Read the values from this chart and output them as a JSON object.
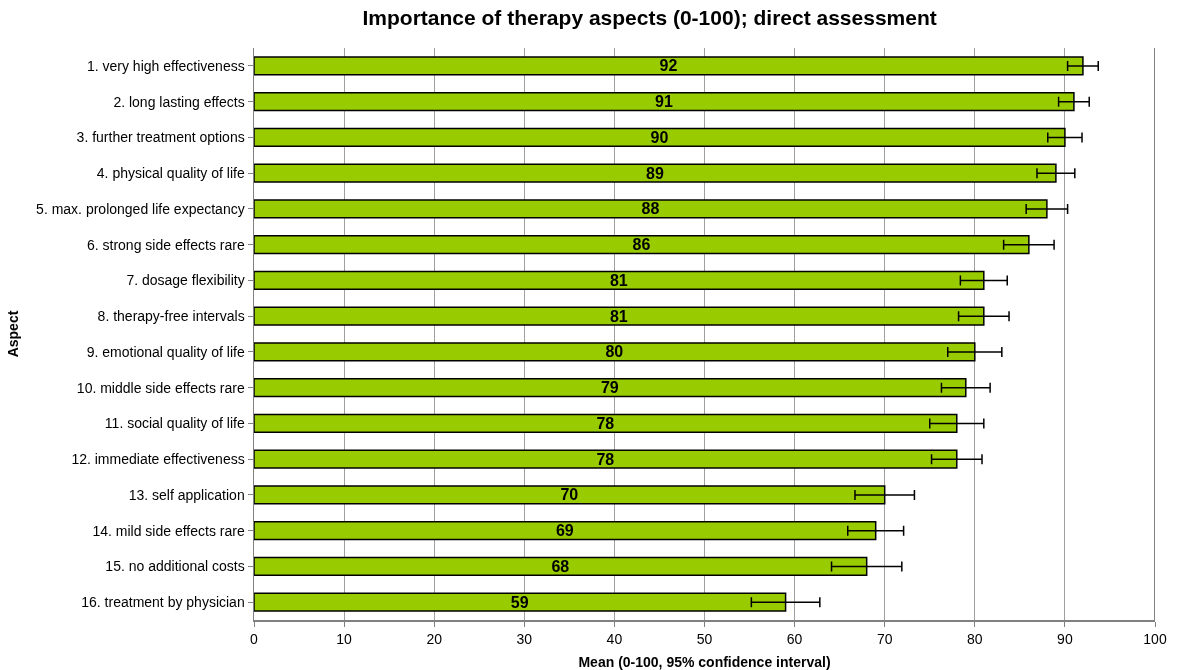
{
  "chart_data": {
    "type": "bar",
    "orientation": "horizontal",
    "title": "Importance of therapy aspects (0-100); direct assessment",
    "xlabel": "Mean (0-100, 95% confidence interval)",
    "ylabel": "Aspect",
    "categories": [
      "1. very high effectiveness",
      "2. long lasting effects",
      "3. further treatment options",
      "4. physical quality of life",
      "5. max. prolonged life expectancy",
      "6. strong side effects rare",
      "7. dosage flexibility",
      "8. therapy-free intervals",
      "9. emotional quality of life",
      "10. middle side effects rare",
      "11. social quality of life",
      "12. immediate effectiveness",
      "13. self application",
      "14. mild side effects rare",
      "15. no additional costs",
      "16. treatment by physician"
    ],
    "values": [
      92,
      91,
      90,
      89,
      88,
      86,
      81,
      81,
      80,
      79,
      78,
      78,
      70,
      69,
      68,
      59
    ],
    "errors": [
      1.7,
      1.7,
      1.9,
      2.1,
      2.3,
      2.8,
      2.6,
      2.8,
      3.0,
      2.7,
      3.0,
      2.8,
      3.3,
      3.1,
      3.9,
      3.8
    ],
    "color": "#99cc00",
    "data_labels": true,
    "grid": "x",
    "xlim": [
      0,
      100
    ],
    "xticks": [
      0,
      10,
      20,
      30,
      40,
      50,
      60,
      70,
      80,
      90,
      100
    ]
  }
}
